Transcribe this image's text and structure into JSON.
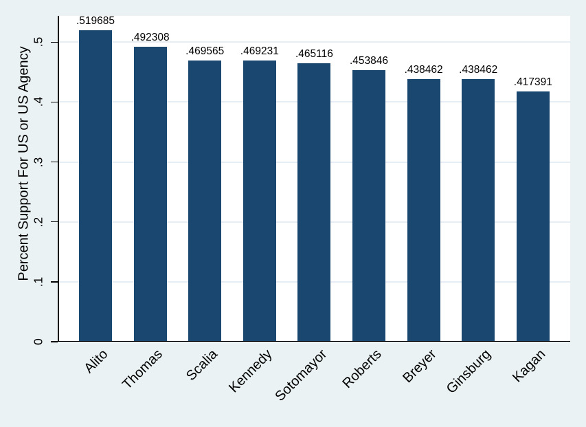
{
  "chart_data": {
    "type": "bar",
    "categories": [
      "Alito",
      "Thomas",
      "Scalia",
      "Kennedy",
      "Sotomayor",
      "Roberts",
      "Breyer",
      "Ginsburg",
      "Kagan"
    ],
    "values": [
      0.519685,
      0.492308,
      0.469565,
      0.469231,
      0.465116,
      0.453846,
      0.438462,
      0.438462,
      0.417391
    ],
    "bar_labels": [
      ".519685",
      ".492308",
      ".469565",
      ".469231",
      ".465116",
      ".453846",
      ".438462",
      ".438462",
      ".417391"
    ],
    "title": "",
    "xlabel": "",
    "ylabel": "Percent Support For US or US Agency",
    "ylim": [
      0,
      0.544
    ],
    "yticks": [
      0,
      0.1,
      0.2,
      0.3,
      0.4,
      0.5
    ],
    "ytick_labels": [
      "0",
      ".1",
      ".2",
      ".3",
      ".4",
      ".5"
    ],
    "grid": true,
    "legend": false,
    "colors": {
      "bar": "#1A476F",
      "canvas_background": "#EAF2F3",
      "plot_background": "#FFFFFF",
      "gridline": "#E6EDF4",
      "axis": "#000000",
      "text": "#000000"
    }
  }
}
